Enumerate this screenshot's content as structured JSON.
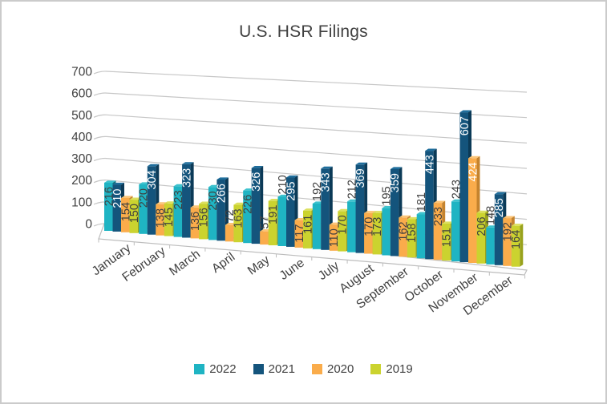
{
  "chart_data": {
    "type": "bar",
    "style": "3d-clustered-column",
    "title": "U.S. HSR Filings",
    "categories": [
      "January",
      "February",
      "March",
      "April",
      "May",
      "June",
      "July",
      "August",
      "September",
      "October",
      "November",
      "December"
    ],
    "series": [
      {
        "name": "2022",
        "values": [
          216,
          220,
          223,
          230,
          226,
          210,
          192,
          212,
          195,
          181,
          243,
          148
        ],
        "color": "#1FB4C3",
        "side_color": "#117280",
        "top_color": "#3DC2CE"
      },
      {
        "name": "2021",
        "values": [
          210,
          304,
          323,
          266,
          326,
          295,
          343,
          369,
          359,
          443,
          607,
          285
        ],
        "color": "#14547C",
        "side_color": "#0B3A57",
        "top_color": "#1F6E9C"
      },
      {
        "name": "2020",
        "values": [
          154,
          138,
          136,
          72,
          57,
          117,
          110,
          170,
          162,
          233,
          424,
          192
        ],
        "color": "#FAAC4B",
        "side_color": "#C5832E",
        "top_color": "#FCC577"
      },
      {
        "name": "2019",
        "values": [
          150,
          145,
          156,
          163,
          191,
          161,
          170,
          173,
          158,
          151,
          206,
          164
        ],
        "color": "#CBD32F",
        "side_color": "#99A21D",
        "top_color": "#DCE060"
      }
    ],
    "y_axis": {
      "min": 0,
      "max": 700,
      "step": 100,
      "tick_labels": [
        "0",
        "100",
        "200",
        "300",
        "400",
        "500",
        "600",
        "700"
      ]
    },
    "legend": {
      "position": "bottom",
      "entries": [
        "2022",
        "2021",
        "2020",
        "2019"
      ]
    },
    "grid": true,
    "colors": {
      "gridline": "#C7C7C7",
      "floor_edge": "#BDBDBD",
      "axis_text": "#404040",
      "title_text": "#404040",
      "data_label_dark": "#3F3F3F",
      "data_label_light": "#FFFFFF"
    }
  }
}
